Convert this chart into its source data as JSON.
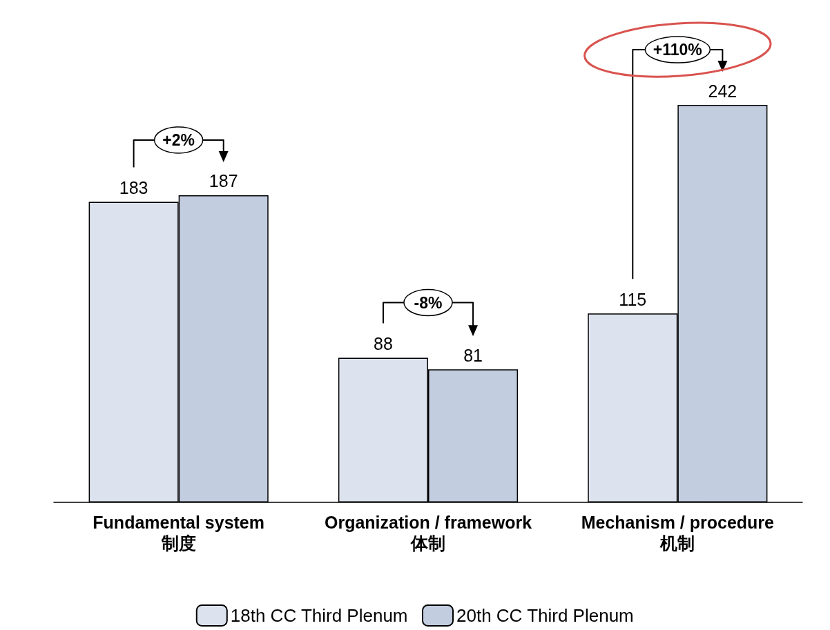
{
  "chart_data": {
    "type": "bar",
    "categories": [
      "Fundamental system\n制度",
      "Organization / framework\n体制",
      "Mechanism / procedure\n机制"
    ],
    "series": [
      {
        "name": "18th CC Third Plenum",
        "color": "#dde3ee",
        "values": [
          183,
          88,
          115
        ]
      },
      {
        "name": "20th CC Third Plenum",
        "color": "#c3cde0",
        "values": [
          187,
          81,
          242
        ]
      }
    ],
    "data_labels": true,
    "legend": "bottom",
    "grid": false,
    "annotations": [
      "+2%",
      "-8%",
      "+110%"
    ]
  }
}
